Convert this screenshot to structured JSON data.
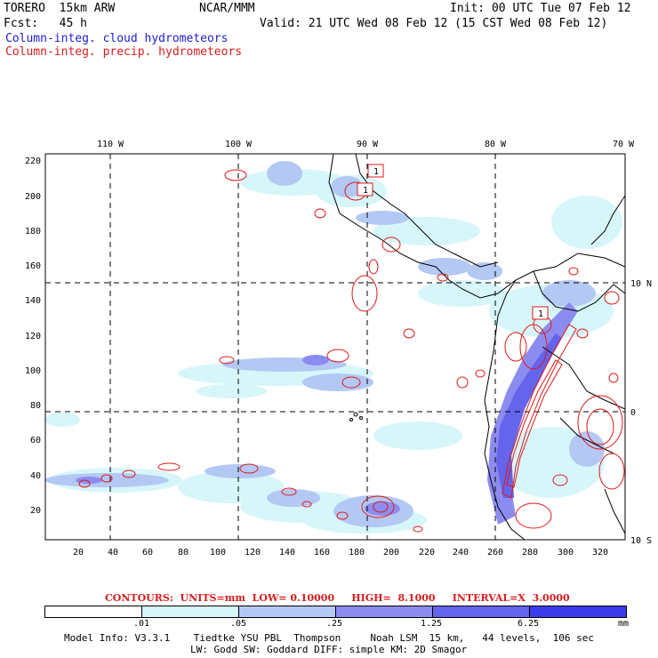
{
  "header": {
    "model": "TORERO  15km ARW",
    "center": "NCAR/MMM",
    "init": "Init: 00 UTC Tue 07 Feb 12",
    "fcst": "Fcst:   45 h",
    "valid": "Valid: 21 UTC Wed 08 Feb 12 (15 CST Wed 08 Feb 12)",
    "field1": "Column-integ. cloud hydrometeors",
    "field2": "Column-integ. precip. hydrometeors"
  },
  "axes": {
    "lon_labels": [
      "110 W",
      "100 W",
      "90 W",
      "80 W",
      "70 W"
    ],
    "lat_labels": [
      "10 N",
      "0",
      "10 S"
    ],
    "x_ticks": [
      "20",
      "40",
      "60",
      "80",
      "100",
      "120",
      "140",
      "160",
      "180",
      "200",
      "220",
      "240",
      "260",
      "280",
      "300",
      "320"
    ],
    "y_ticks": [
      "220",
      "200",
      "180",
      "160",
      "140",
      "120",
      "100",
      "80",
      "60",
      "40",
      "20"
    ]
  },
  "contours": "CONTOURS:  UNITS=mm  LOW= 0.10000     HIGH=  8.1000     INTERVAL=X  3.0000",
  "colorbar": {
    "labels": [
      ".01",
      ".05",
      ".25",
      "1.25",
      "6.25"
    ],
    "units": "mm",
    "colors": [
      "#ffffff",
      "#d6f6fa",
      "#b4c8f4",
      "#8c8cf0",
      "#6464ec",
      "#3c3cec"
    ]
  },
  "model_info": {
    "line1": "Model Info: V3.3.1    Tiedtke YSU PBL  Thompson     Noah LSM  15 km,   44 levels,  106 sec",
    "line2": "LW: Godd SW: Goddard DIFF: simple KM: 2D Smagor"
  },
  "map_labels": [
    "1",
    "1",
    "1"
  ]
}
